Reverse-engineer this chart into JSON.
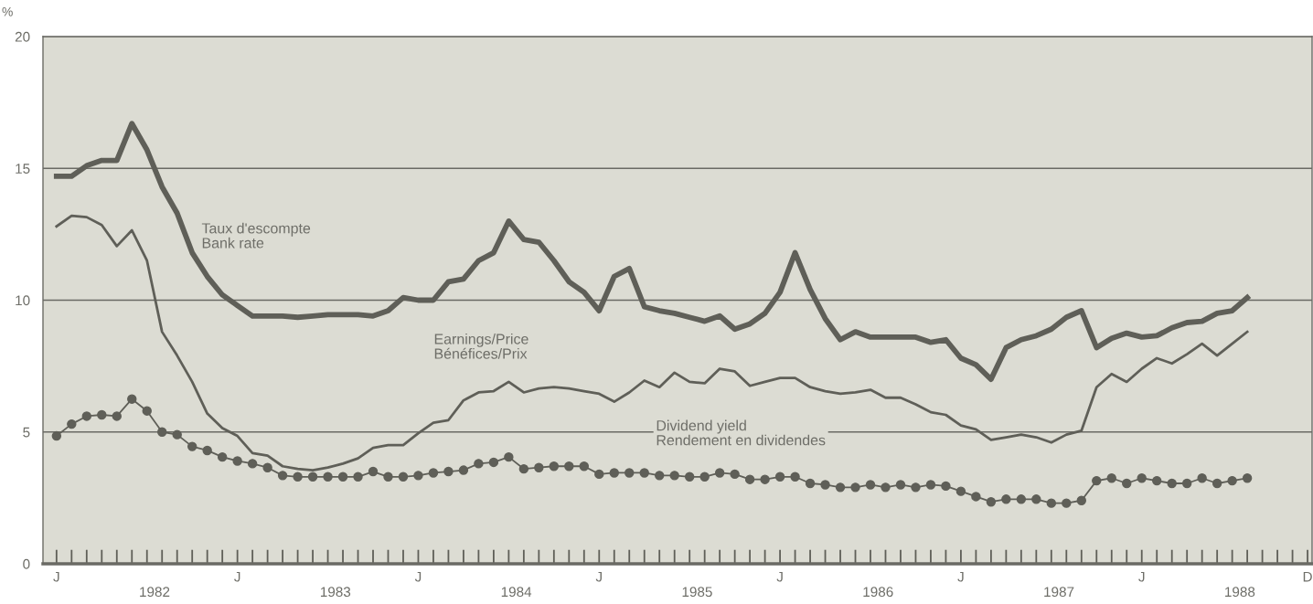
{
  "chart_data": {
    "type": "line",
    "ylabel": "%",
    "ylim": [
      0,
      20
    ],
    "yticks": [
      0,
      5,
      10,
      15,
      20
    ],
    "grid": "y",
    "legend": false,
    "annotations": [
      "1982",
      "1983",
      "1984",
      "1985",
      "1986",
      "1987",
      "1988"
    ],
    "categories": [
      "J",
      null,
      null,
      null,
      null,
      null,
      null,
      null,
      null,
      null,
      null,
      null,
      "J",
      null,
      null,
      null,
      null,
      null,
      null,
      null,
      null,
      null,
      null,
      null,
      "J",
      null,
      null,
      null,
      null,
      null,
      null,
      null,
      null,
      null,
      null,
      null,
      "J",
      null,
      null,
      null,
      null,
      null,
      null,
      null,
      null,
      null,
      null,
      null,
      "J",
      null,
      null,
      null,
      null,
      null,
      null,
      null,
      null,
      null,
      null,
      null,
      "J",
      null,
      null,
      null,
      null,
      null,
      null,
      null,
      null,
      null,
      null,
      null,
      "J",
      null,
      null,
      null,
      null,
      null,
      null,
      null,
      null,
      null,
      null,
      "D"
    ],
    "series": [
      {
        "name": "Taux d'escompte\nBank rate",
        "color": "#5f5f58",
        "marker": "none",
        "values": [
          14.7,
          14.7,
          15.1,
          15.3,
          15.3,
          16.7,
          15.7,
          14.3,
          13.3,
          11.8,
          10.9,
          10.2,
          9.8,
          9.4,
          9.4,
          9.4,
          9.35,
          9.4,
          9.45,
          9.45,
          9.45,
          9.4,
          9.6,
          10.1,
          10.0,
          10.0,
          10.7,
          10.8,
          11.5,
          11.8,
          13.0,
          12.3,
          12.2,
          11.5,
          10.7,
          10.3,
          9.6,
          10.9,
          11.2,
          9.75,
          9.6,
          9.5,
          9.35,
          9.2,
          9.4,
          8.9,
          9.1,
          9.5,
          10.3,
          11.8,
          10.4,
          9.3,
          8.5,
          8.8,
          8.6,
          8.6,
          8.6,
          8.6,
          8.4,
          8.5,
          7.8,
          7.55,
          7.0,
          8.2,
          8.5,
          8.65,
          8.9,
          9.35,
          9.6,
          8.2,
          8.55,
          8.75,
          8.6,
          8.65,
          8.95,
          9.15,
          9.2,
          9.5,
          9.6,
          10.1,
          null,
          null,
          null,
          null
        ]
      },
      {
        "name": "Earnings/Price\nBénéfices/Prix",
        "color": "#5f5f58",
        "marker": "none",
        "values": [
          12.8,
          13.2,
          13.15,
          12.85,
          12.05,
          12.65,
          11.5,
          8.8,
          7.9,
          6.9,
          5.7,
          5.15,
          4.85,
          4.2,
          4.1,
          3.7,
          3.6,
          3.55,
          3.65,
          3.8,
          4.0,
          4.4,
          4.5,
          4.5,
          4.95,
          5.35,
          5.45,
          6.2,
          6.5,
          6.55,
          6.9,
          6.5,
          6.65,
          6.7,
          6.65,
          6.55,
          6.45,
          6.15,
          6.5,
          6.95,
          6.7,
          7.25,
          6.9,
          6.85,
          7.4,
          7.3,
          6.75,
          6.9,
          7.05,
          7.05,
          6.7,
          6.55,
          6.45,
          6.5,
          6.6,
          6.3,
          6.3,
          6.05,
          5.75,
          5.65,
          5.25,
          5.1,
          4.7,
          4.8,
          4.9,
          4.8,
          4.6,
          4.9,
          5.05,
          6.7,
          7.2,
          6.9,
          7.4,
          7.8,
          7.6,
          7.95,
          8.35,
          7.9,
          8.35,
          8.8,
          null,
          null,
          null,
          null
        ]
      },
      {
        "name": "Dividend yield\nRendement en dividendes",
        "color": "#5f5f58",
        "marker": "circle",
        "values": [
          4.85,
          5.3,
          5.6,
          5.65,
          5.6,
          6.25,
          5.8,
          5.0,
          4.9,
          4.45,
          4.3,
          4.05,
          3.9,
          3.8,
          3.65,
          3.35,
          3.3,
          3.3,
          3.3,
          3.3,
          3.3,
          3.5,
          3.3,
          3.3,
          3.35,
          3.45,
          3.5,
          3.55,
          3.8,
          3.85,
          4.05,
          3.6,
          3.65,
          3.7,
          3.7,
          3.7,
          3.4,
          3.45,
          3.45,
          3.45,
          3.35,
          3.35,
          3.3,
          3.3,
          3.45,
          3.4,
          3.2,
          3.2,
          3.3,
          3.3,
          3.05,
          3.0,
          2.9,
          2.9,
          3.0,
          2.9,
          3.0,
          2.9,
          3.0,
          2.95,
          2.75,
          2.55,
          2.35,
          2.45,
          2.45,
          2.45,
          2.3,
          2.3,
          2.4,
          3.15,
          3.25,
          3.05,
          3.25,
          3.15,
          3.05,
          3.05,
          3.25,
          3.05,
          3.15,
          3.25,
          null,
          null,
          null,
          null
        ]
      }
    ]
  }
}
